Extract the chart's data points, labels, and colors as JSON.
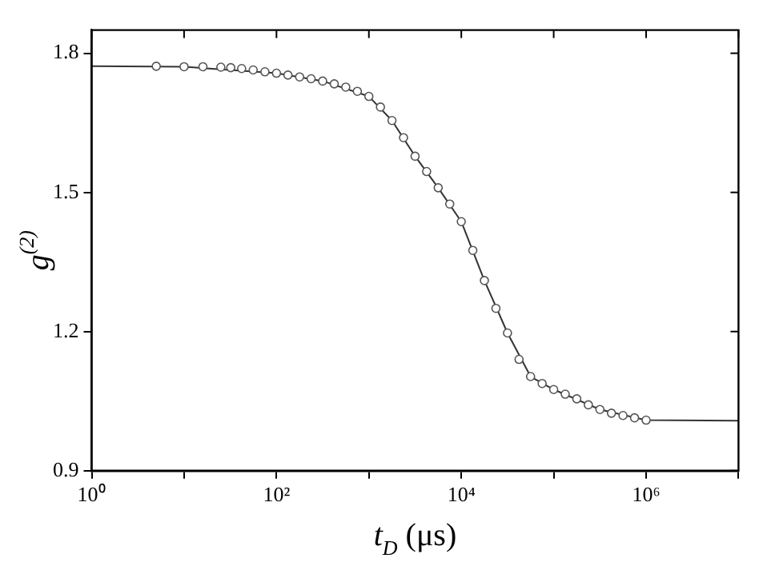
{
  "chart_data": {
    "type": "scatter",
    "xlabel": "t$_{D}$ (μs)",
    "ylabel": "g$^{(2)}$",
    "log": "x",
    "grid": false,
    "legend": false,
    "xlim": [
      1,
      10000000
    ],
    "xticks": [
      {
        "value": 1,
        "label": "10⁰"
      },
      {
        "value": 10,
        "label": null
      },
      {
        "value": 100,
        "label": "10²"
      },
      {
        "value": 1000,
        "label": null
      },
      {
        "value": 10000,
        "label": "10⁴"
      },
      {
        "value": 100000,
        "label": null
      },
      {
        "value": 1000000,
        "label": "10⁶"
      },
      {
        "value": 10000000,
        "label": null
      }
    ],
    "ylim": [
      0.9,
      1.85
    ],
    "yticks": [
      0.9,
      1.2,
      1.5,
      1.8
    ],
    "series": [
      {
        "type": "scatter",
        "marker": "circle",
        "color": "#555555",
        "x": [
          5,
          10,
          16,
          25,
          32,
          42,
          56,
          75,
          100,
          133,
          178,
          237,
          316,
          422,
          562,
          750,
          1000,
          1334,
          1778,
          2371,
          3162,
          4217,
          5623,
          7499,
          10000,
          13335,
          17783,
          23714,
          31623,
          42170,
          56234,
          74989,
          100000,
          133352,
          177828,
          237137,
          316228,
          421697,
          562341,
          749894,
          1000000
        ],
        "values": [
          1.772,
          1.771,
          1.771,
          1.77,
          1.769,
          1.767,
          1.764,
          1.76,
          1.757,
          1.753,
          1.749,
          1.745,
          1.74,
          1.734,
          1.727,
          1.718,
          1.707,
          1.684,
          1.655,
          1.618,
          1.578,
          1.545,
          1.51,
          1.475,
          1.437,
          1.375,
          1.31,
          1.25,
          1.197,
          1.14,
          1.103,
          1.088,
          1.075,
          1.065,
          1.055,
          1.042,
          1.032,
          1.024,
          1.019,
          1.014,
          1.009
        ]
      },
      {
        "type": "line",
        "marker": "none",
        "line_style": "solid",
        "color": "#333333",
        "x": [
          1,
          10,
          100,
          316,
          1000,
          1778,
          3162,
          5623,
          10000,
          17783,
          31623,
          56234,
          100000,
          316228,
          1000000,
          10000000
        ],
        "values": [
          1.772,
          1.771,
          1.757,
          1.74,
          1.707,
          1.655,
          1.578,
          1.51,
          1.437,
          1.31,
          1.197,
          1.103,
          1.075,
          1.032,
          1.009,
          1.008
        ]
      }
    ]
  }
}
